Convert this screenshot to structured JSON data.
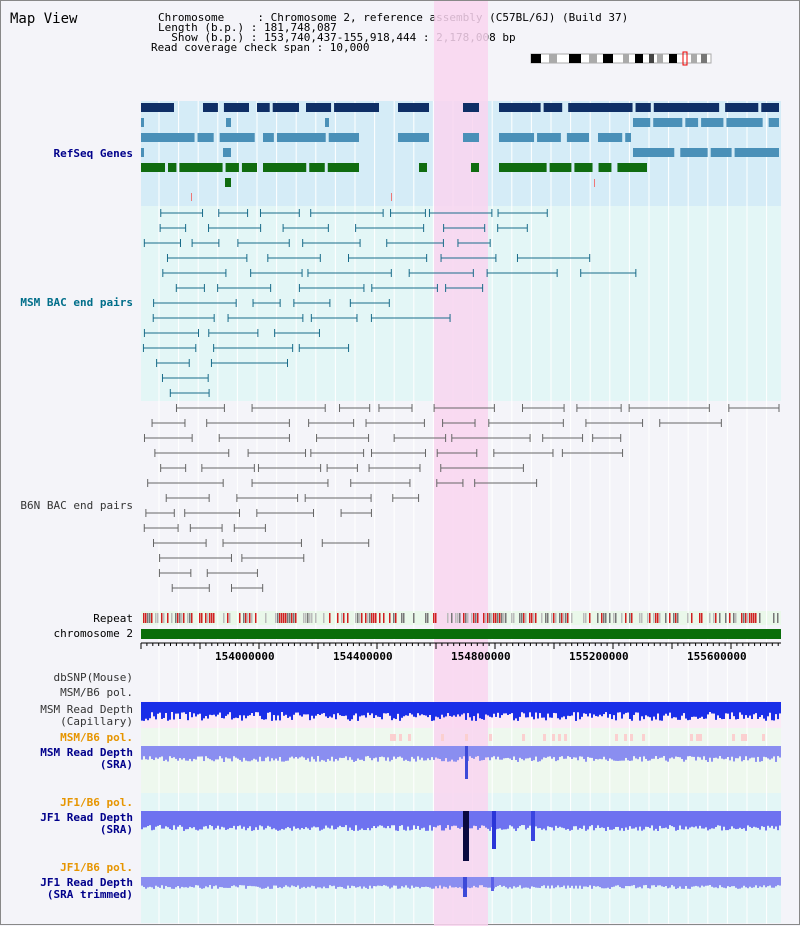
{
  "title": "Map View",
  "info": {
    "chromosome": "Chromosome     : Chromosome 2, reference assembly (C57BL/6J) (Build 37)",
    "length": "Length (b.p.) : 181,748,087",
    "show": "  Show (b.p.) : 153,740,437-155,918,444 : 2,178,008 bp",
    "coverage": "Read coverage check span : 10,000"
  },
  "tracks": {
    "refseq": "RefSeq Genes",
    "msm_bac": "MSM BAC end pairs",
    "b6n_bac": "B6N BAC end pairs",
    "repeat": "Repeat",
    "chromosome": "chromosome 2",
    "dbsnp": "dbSNP(Mouse)",
    "msm_b6_pol_1": "MSM/B6 pol.",
    "msm_read_depth_cap": "MSM Read Depth\n(Capillary)",
    "msm_b6_pol_2": "MSM/B6 pol.",
    "msm_read_depth_sra": "MSM Read Depth\n(SRA)",
    "jf1_b6_pol_1": "JF1/B6 pol.",
    "jf1_read_depth_sra": "JF1 Read Depth\n(SRA)",
    "jf1_b6_pol_2": "JF1/B6 pol.",
    "jf1_read_depth_trim": "JF1 Read Depth\n(SRA trimmed)"
  },
  "axis": {
    "ticks": [
      "154000000",
      "154400000",
      "154800000",
      "155200000",
      "155600000"
    ]
  },
  "colors": {
    "refseq_dark": "#0f2f66",
    "refseq_mid": "#4a90b8",
    "refseq_green": "#106c10",
    "bac_msm": "#1a6c8a",
    "bac_b6n": "#666666",
    "highlight": "#f9d5f0",
    "label_blue": "#00008b",
    "label_teal": "#006e8a",
    "label_orange": "#e69500",
    "chrom_green": "#0a6e0a"
  }
}
